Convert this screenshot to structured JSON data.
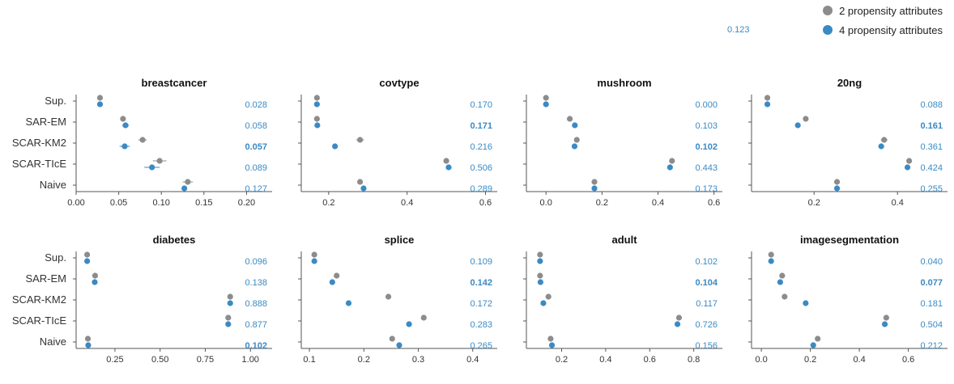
{
  "legend": {
    "sample_value": "0.123",
    "entries": [
      {
        "label": "2 propensity attributes",
        "color": "#8c8c8c"
      },
      {
        "label": "4 propensity attributes",
        "color": "#3a8ac4"
      }
    ]
  },
  "colors": {
    "gray": "#8c8c8c",
    "blue": "#3a8ac4",
    "axis": "#555555",
    "label": "#333333"
  },
  "methods": [
    "Sup.",
    "SAR-EM",
    "SCAR-KM2",
    "SCAR-TIcE",
    "Naive"
  ],
  "chart_data": [
    {
      "type": "scatter",
      "title": "breastcancer",
      "xlim": [
        0,
        0.23
      ],
      "ticks": [
        0,
        0.05,
        0.1,
        0.15,
        0.2
      ],
      "tick_labels": [
        "0.00",
        "0.05",
        "0.10",
        "0.15",
        "0.20"
      ],
      "series": [
        {
          "name": "2 propensity attributes",
          "values": [
            0.028,
            0.055,
            0.078,
            0.098,
            0.131
          ],
          "err": [
            0.001,
            0.003,
            0.005,
            0.008,
            0.006
          ]
        },
        {
          "name": "4 propensity attributes",
          "values": [
            0.028,
            0.058,
            0.057,
            0.089,
            0.127
          ],
          "err": [
            0.001,
            0.004,
            0.006,
            0.009,
            0.002
          ]
        }
      ],
      "labels": [
        "0.028",
        "0.058",
        "0.057",
        "0.089",
        "0.127"
      ],
      "bold": [
        false,
        false,
        true,
        false,
        false
      ]
    },
    {
      "type": "scatter",
      "title": "covtype",
      "xlim": [
        0.13,
        0.63
      ],
      "ticks": [
        0.2,
        0.4,
        0.6
      ],
      "tick_labels": [
        "0.2",
        "0.4",
        "0.6"
      ],
      "series": [
        {
          "name": "2 propensity attributes",
          "values": [
            0.17,
            0.17,
            0.28,
            0.5,
            0.28
          ],
          "err": [
            0.001,
            0.001,
            0.01,
            0.002,
            0.002
          ]
        },
        {
          "name": "4 propensity attributes",
          "values": [
            0.17,
            0.171,
            0.216,
            0.506,
            0.289
          ],
          "err": [
            0.001,
            0.001,
            0.002,
            0.002,
            0.002
          ]
        }
      ],
      "labels": [
        "0.170",
        "0.171",
        "0.216",
        "0.506",
        "0.289"
      ],
      "bold": [
        false,
        true,
        false,
        false,
        false
      ]
    },
    {
      "type": "scatter",
      "title": "mushroom",
      "xlim": [
        -0.07,
        0.63
      ],
      "ticks": [
        0,
        0.2,
        0.4,
        0.6
      ],
      "tick_labels": [
        "0.0",
        "0.2",
        "0.4",
        "0.6"
      ],
      "series": [
        {
          "name": "2 propensity attributes",
          "values": [
            0.0,
            0.085,
            0.11,
            0.45,
            0.173
          ],
          "err": [
            0.001,
            0.003,
            0.002,
            0.002,
            0.001
          ]
        },
        {
          "name": "4 propensity attributes",
          "values": [
            0.0,
            0.103,
            0.102,
            0.443,
            0.173
          ],
          "err": [
            0.001,
            0.002,
            0.002,
            0.002,
            0.001
          ]
        }
      ],
      "labels": [
        "0.000",
        "0.103",
        "0.102",
        "0.443",
        "0.173"
      ],
      "bold": [
        false,
        false,
        true,
        false,
        false
      ]
    },
    {
      "type": "scatter",
      "title": "20ng",
      "xlim": [
        0.05,
        0.52
      ],
      "ticks": [
        0.2,
        0.4
      ],
      "tick_labels": [
        "0.2",
        "0.4"
      ],
      "series": [
        {
          "name": "2 propensity attributes",
          "values": [
            0.088,
            0.18,
            0.368,
            0.428,
            0.255
          ],
          "err": [
            0.001,
            0.003,
            0.008,
            0.002,
            0.002
          ]
        },
        {
          "name": "4 propensity attributes",
          "values": [
            0.088,
            0.161,
            0.361,
            0.424,
            0.255
          ],
          "err": [
            0.001,
            0.002,
            0.007,
            0.002,
            0.002
          ]
        }
      ],
      "labels": [
        "0.088",
        "0.161",
        "0.361",
        "0.424",
        "0.255"
      ],
      "bold": [
        false,
        true,
        false,
        false,
        false
      ]
    },
    {
      "type": "scatter",
      "title": "diabetes",
      "xlim": [
        0.035,
        1.12
      ],
      "ticks": [
        0.25,
        0.5,
        0.75,
        1.0
      ],
      "tick_labels": [
        "0.25",
        "0.50",
        "0.75",
        "1.00"
      ],
      "series": [
        {
          "name": "2 propensity attributes",
          "values": [
            0.096,
            0.14,
            0.888,
            0.877,
            0.1
          ],
          "err": [
            0.001,
            0.002,
            0.002,
            0.002,
            0.001
          ]
        },
        {
          "name": "4 propensity attributes",
          "values": [
            0.096,
            0.138,
            0.888,
            0.877,
            0.102
          ],
          "err": [
            0.001,
            0.002,
            0.002,
            0.002,
            0.001
          ]
        }
      ],
      "labels": [
        "0.096",
        "0.138",
        "0.888",
        "0.877",
        "0.102"
      ],
      "bold": [
        false,
        false,
        false,
        false,
        true
      ]
    },
    {
      "type": "scatter",
      "title": "splice",
      "xlim": [
        0.085,
        0.445
      ],
      "ticks": [
        0.1,
        0.2,
        0.3,
        0.4
      ],
      "tick_labels": [
        "0.1",
        "0.2",
        "0.3",
        "0.4"
      ],
      "series": [
        {
          "name": "2 propensity attributes",
          "values": [
            0.109,
            0.15,
            0.245,
            0.31,
            0.252
          ],
          "err": [
            0.001,
            0.002,
            0.005,
            0.005,
            0.002
          ]
        },
        {
          "name": "4 propensity attributes",
          "values": [
            0.109,
            0.142,
            0.172,
            0.283,
            0.265
          ],
          "err": [
            0.001,
            0.002,
            0.002,
            0.002,
            0.002
          ]
        }
      ],
      "labels": [
        "0.109",
        "0.142",
        "0.172",
        "0.283",
        "0.265"
      ],
      "bold": [
        false,
        true,
        false,
        false,
        false
      ]
    },
    {
      "type": "scatter",
      "title": "adult",
      "xlim": [
        0.04,
        0.93
      ],
      "ticks": [
        0.2,
        0.4,
        0.6,
        0.8
      ],
      "tick_labels": [
        "0.2",
        "0.4",
        "0.6",
        "0.8"
      ],
      "series": [
        {
          "name": "2 propensity attributes",
          "values": [
            0.102,
            0.102,
            0.14,
            0.733,
            0.15
          ],
          "err": [
            0.001,
            0.001,
            0.002,
            0.002,
            0.002
          ]
        },
        {
          "name": "4 propensity attributes",
          "values": [
            0.102,
            0.104,
            0.117,
            0.726,
            0.156
          ],
          "err": [
            0.001,
            0.001,
            0.002,
            0.002,
            0.002
          ]
        }
      ],
      "labels": [
        "0.102",
        "0.104",
        "0.117",
        "0.726",
        "0.156"
      ],
      "bold": [
        false,
        true,
        false,
        false,
        false
      ]
    },
    {
      "type": "scatter",
      "title": "imagesegmentation",
      "xlim": [
        -0.04,
        0.76
      ],
      "ticks": [
        0,
        0.2,
        0.4,
        0.6
      ],
      "tick_labels": [
        "0.0",
        "0.2",
        "0.4",
        "0.6"
      ],
      "series": [
        {
          "name": "2 propensity attributes",
          "values": [
            0.04,
            0.085,
            0.095,
            0.51,
            0.23
          ],
          "err": [
            0.001,
            0.002,
            0.002,
            0.002,
            0.002
          ]
        },
        {
          "name": "4 propensity attributes",
          "values": [
            0.04,
            0.077,
            0.181,
            0.504,
            0.212
          ],
          "err": [
            0.001,
            0.002,
            0.006,
            0.002,
            0.002
          ]
        }
      ],
      "labels": [
        "0.040",
        "0.077",
        "0.181",
        "0.504",
        "0.212"
      ],
      "bold": [
        false,
        true,
        false,
        false,
        false
      ]
    }
  ]
}
